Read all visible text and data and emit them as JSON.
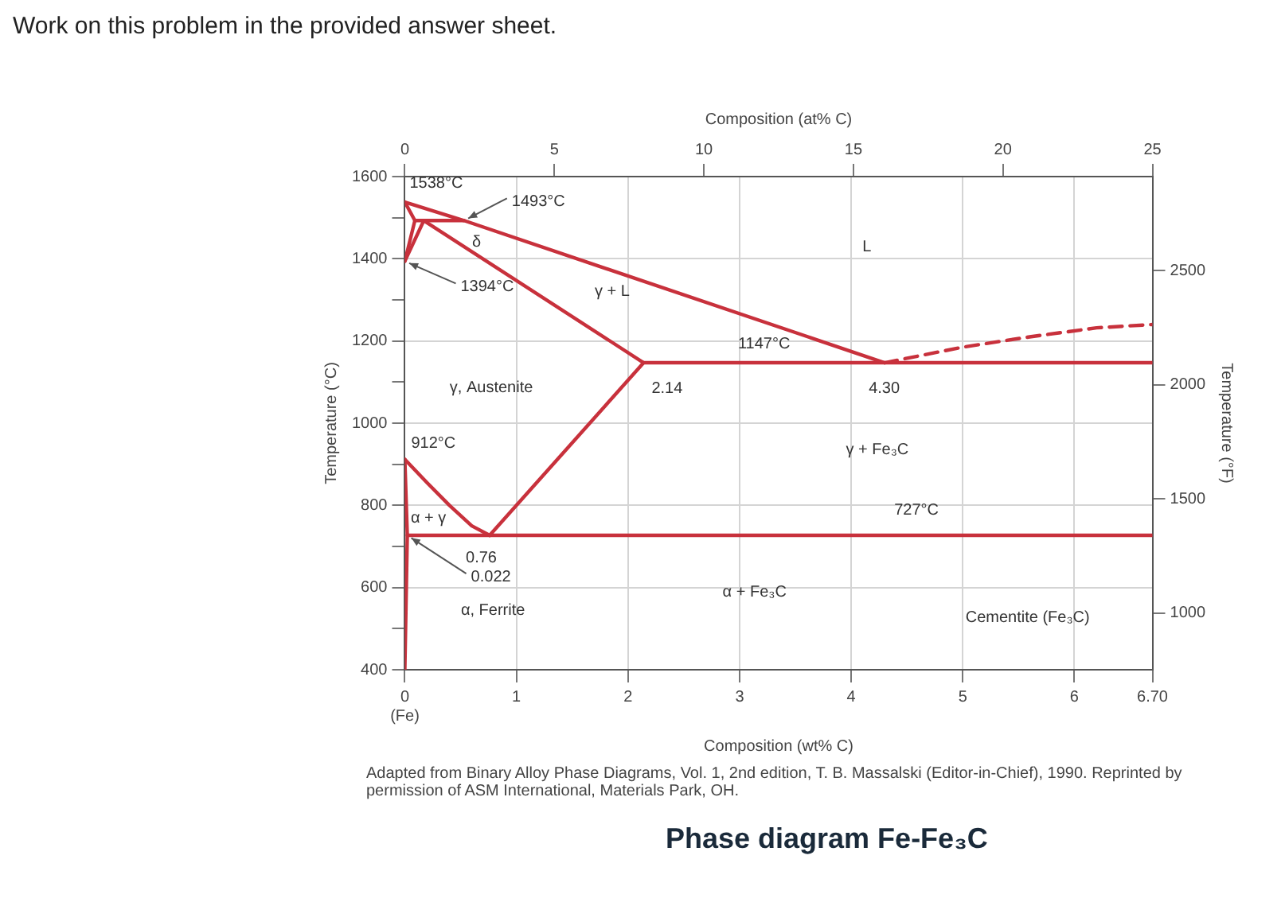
{
  "chart_data": {
    "type": "line",
    "title": "Phase diagram Fe-Fe₃C",
    "xlabel": "Composition (wt% C)",
    "ylabel": "Temperature (°C)",
    "y2label": "Temperature (°F)",
    "x2label": "Composition (at% C)",
    "xlim": [
      0,
      6.7
    ],
    "xticks": [
      {
        "value": 0,
        "label": "0\n(Fe)"
      },
      1,
      2,
      3,
      4,
      5,
      6,
      {
        "value": 6.7,
        "label": "6.70"
      }
    ],
    "x2lim": [
      0,
      25
    ],
    "x2ticks": [
      0,
      5,
      10,
      15,
      20,
      25
    ],
    "ylim": [
      400,
      1600
    ],
    "yticks": [
      400,
      {
        "value": 500,
        "label": null
      },
      600,
      {
        "value": 700,
        "label": null
      },
      800,
      {
        "value": 900,
        "label": null
      },
      1000,
      {
        "value": 1100,
        "label": null
      },
      1200,
      {
        "value": 1300,
        "label": null
      },
      1400,
      {
        "value": 1500,
        "label": null
      },
      1600
    ],
    "y2lim": [
      752,
      2912
    ],
    "y2ticks": [
      1000,
      1500,
      2000,
      2500
    ],
    "grid": true,
    "legend": false,
    "marker": "none",
    "series": [
      {
        "color": "#c8313c",
        "x": [
          0,
          0.53,
          4.3
        ],
        "values": [
          1538,
          1493,
          1147
        ]
      },
      {
        "color": "#c8313c",
        "x": [
          4.3,
          5.0,
          5.6,
          6.2,
          6.7
        ],
        "values": [
          1147,
          1185,
          1210,
          1232,
          1240
        ],
        "line_style": "dashed"
      },
      {
        "color": "#c8313c",
        "x": [
          0.09,
          0.53
        ],
        "values": [
          1493,
          1493
        ]
      },
      {
        "color": "#c8313c",
        "x": [
          0,
          0.09,
          0
        ],
        "values": [
          1538,
          1493,
          1394
        ]
      },
      {
        "color": "#c8313c",
        "x": [
          0,
          0.17,
          2.14
        ],
        "values": [
          1394,
          1493,
          1147
        ]
      },
      {
        "color": "#c8313c",
        "x": [
          2.14,
          6.7
        ],
        "values": [
          1147,
          1147
        ]
      },
      {
        "color": "#c8313c",
        "x": [
          2.14,
          0.76
        ],
        "values": [
          1147,
          727
        ]
      },
      {
        "color": "#c8313c",
        "x": [
          0,
          0.2,
          0.4,
          0.6,
          0.76
        ],
        "values": [
          912,
          855,
          800,
          750,
          727
        ]
      },
      {
        "color": "#c8313c",
        "x": [
          0.022,
          6.7
        ],
        "values": [
          727,
          727
        ]
      },
      {
        "color": "#c8313c",
        "x": [
          0,
          0.022,
          0
        ],
        "values": [
          912,
          727,
          400
        ]
      }
    ],
    "annotations": [
      "Work on this problem in the provided answer sheet.",
      "Adapted from Binary Alloy Phase Diagrams, Vol. 1, 2nd edition, T. B. Massalski (Editor-in-Chief), 1990. Reprinted by permission of ASM International, Materials Park, OH.",
      {
        "text": "1538°C",
        "x": 0,
        "y": 1538
      },
      {
        "text": "1493°C",
        "x": 0.53,
        "y": 1493
      },
      "δ",
      {
        "text": "1394°C",
        "x": 0,
        "y": 1394
      },
      "γ + L",
      "L",
      {
        "text": "1147°C",
        "x": 3.2,
        "y": 1147
      },
      {
        "text": "2.14",
        "x": 2.14,
        "y": 1147
      },
      {
        "text": "4.30",
        "x": 4.3,
        "y": 1147
      },
      "γ, Austenite",
      {
        "text": "912°C",
        "x": 0,
        "y": 912
      },
      "γ + Fe₃C",
      {
        "text": "727°C",
        "x": 4.6,
        "y": 727
      },
      "α + γ",
      {
        "text": "0.76",
        "x": 0.76,
        "y": 727
      },
      {
        "text": "0.022",
        "x": 0.022,
        "y": 727
      },
      "α, Ferrite",
      "α + Fe₃C",
      "Cementite (Fe₃C)"
    ]
  }
}
